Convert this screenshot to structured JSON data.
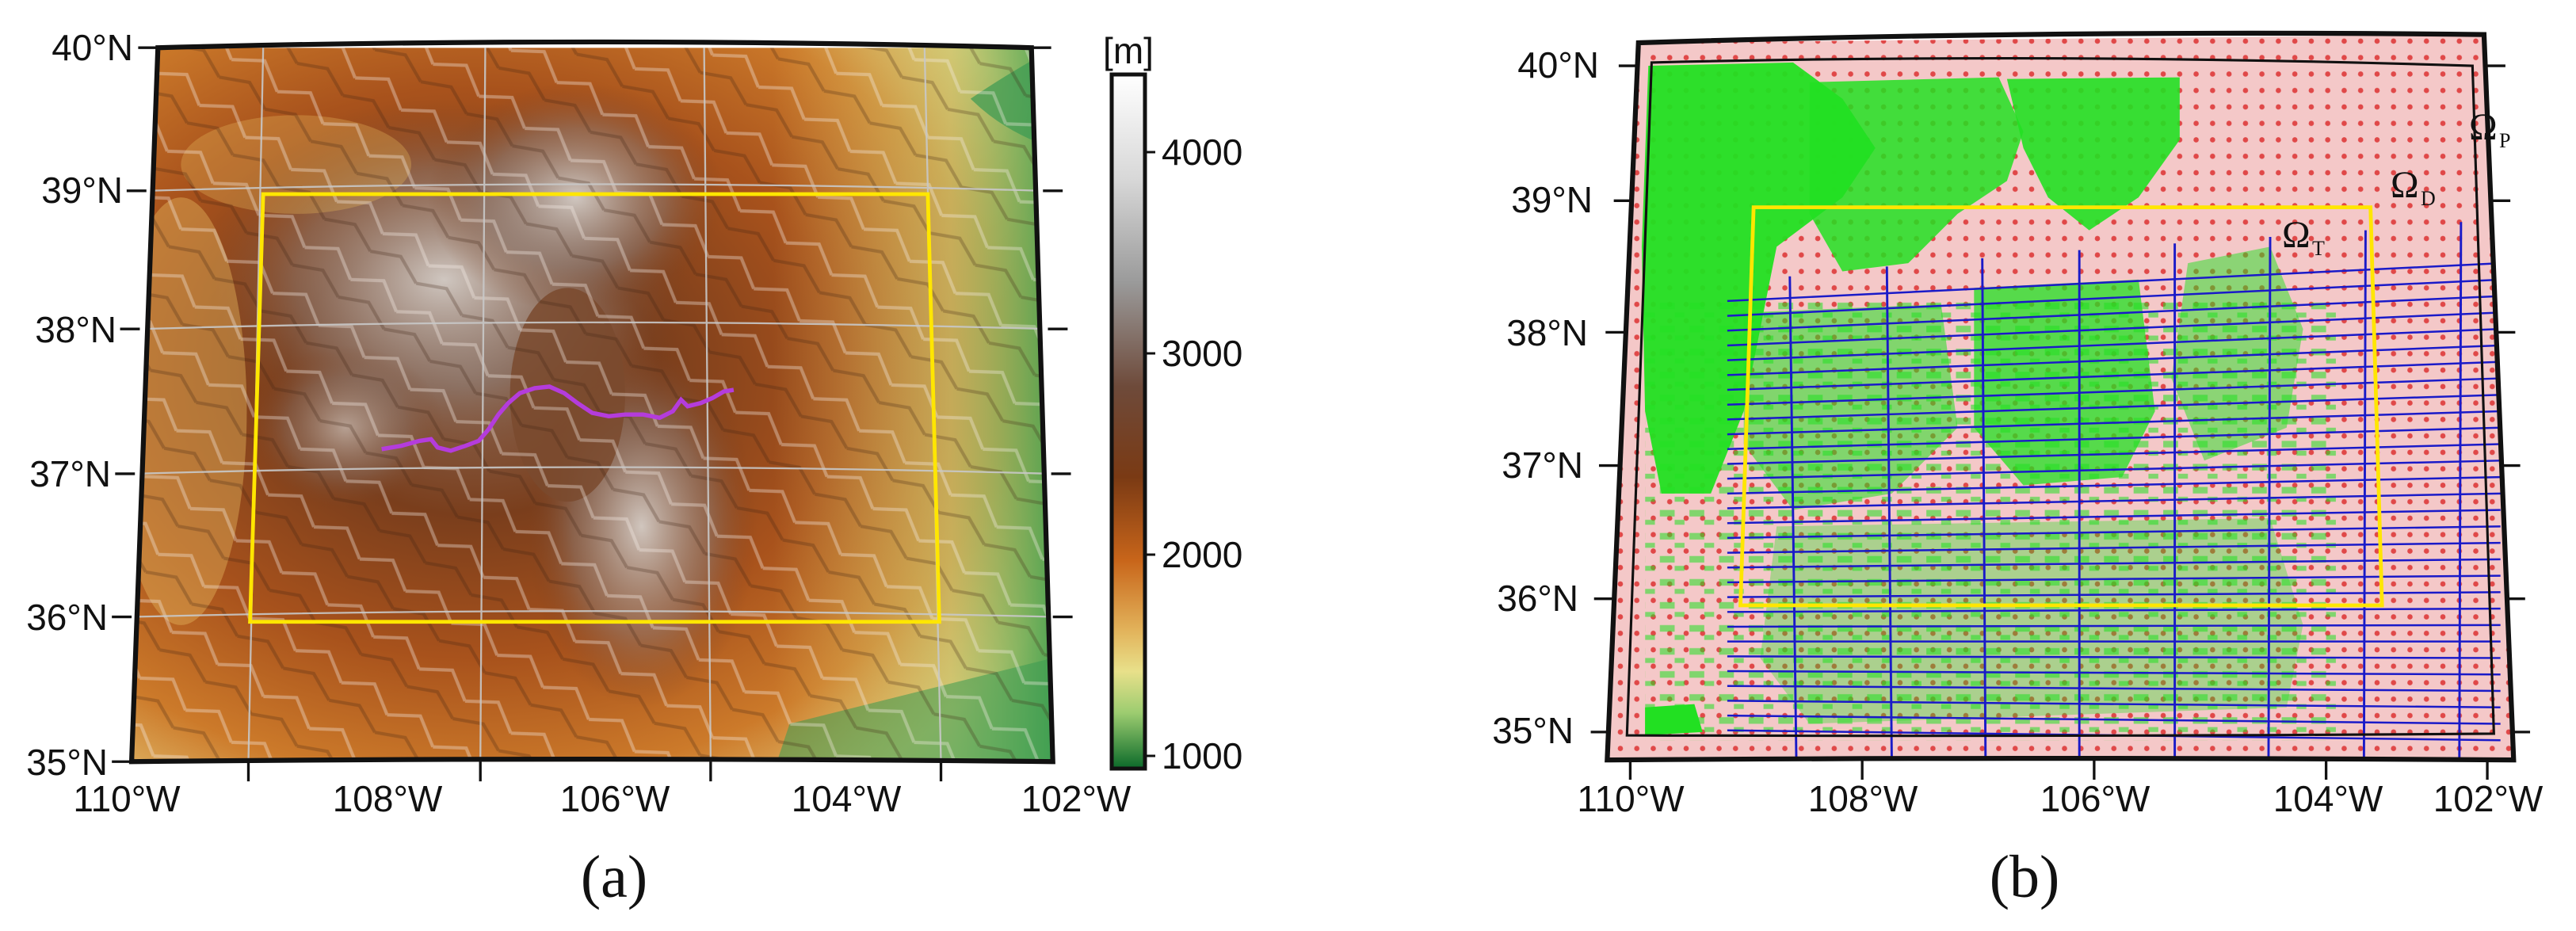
{
  "panel_a": {
    "label": "(a)",
    "lat_labels": [
      "40°N",
      "39°N",
      "38°N",
      "37°N",
      "36°N",
      "35°N"
    ],
    "lon_labels": [
      "110°W",
      "108°W",
      "106°W",
      "104°W",
      "102°W"
    ],
    "colorbar": {
      "unit": "[m]",
      "ticks": [
        "4000",
        "3000",
        "2000",
        "1000"
      ],
      "colors": [
        "#ffffff",
        "#b4b4b4",
        "#6e4a3a",
        "#7a3a14",
        "#c8651a",
        "#e2b25a",
        "#e8e08a",
        "#9ccc70",
        "#1e8a3a",
        "#0b6a2a"
      ]
    },
    "colors": {
      "box": "#ffe600",
      "path": "#b43cdc",
      "frame": "#111111"
    }
  },
  "panel_b": {
    "label": "(b)",
    "lat_labels": [
      "40°N",
      "39°N",
      "38°N",
      "37°N",
      "36°N",
      "35°N"
    ],
    "lon_labels": [
      "110°W",
      "108°W",
      "106°W",
      "104°W",
      "102°W"
    ],
    "domain_labels": {
      "p": {
        "symbol": "Ω",
        "sub": "P"
      },
      "d": {
        "symbol": "Ω",
        "sub": "D"
      },
      "t": {
        "symbol": "Ω",
        "sub": "T"
      }
    },
    "colors": {
      "grid": "#e07070",
      "coverage": "#22e022",
      "tracks": "#1a1ac8",
      "box": "#ffe600",
      "frame": "#111111"
    }
  }
}
